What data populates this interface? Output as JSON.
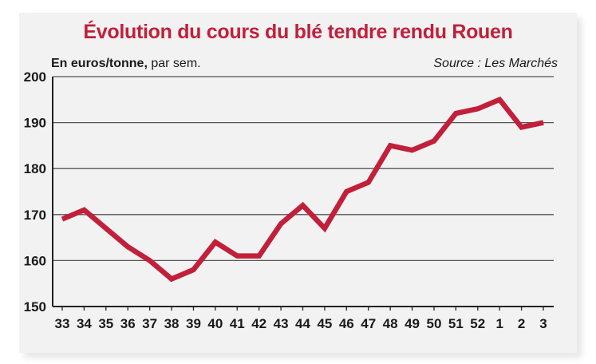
{
  "chart_data": {
    "type": "line",
    "title": "Évolution du cours du blé tendre rendu Rouen",
    "ylabel": "En euros/tonne,",
    "ylabel_suffix": "par sem.",
    "source": "Source : Les Marchés",
    "categories": [
      "33",
      "34",
      "35",
      "36",
      "37",
      "38",
      "39",
      "40",
      "41",
      "42",
      "43",
      "44",
      "45",
      "46",
      "47",
      "48",
      "49",
      "50",
      "51",
      "52",
      "1",
      "2",
      "3"
    ],
    "series": [
      {
        "values": [
          169,
          171,
          167,
          163,
          160,
          156,
          158,
          164,
          161,
          161,
          168,
          172,
          167,
          175,
          177,
          185,
          184,
          186,
          192,
          193,
          195,
          189,
          190
        ]
      }
    ],
    "ylim": [
      150,
      200
    ],
    "yticks": [
      150,
      160,
      170,
      180,
      190,
      200
    ],
    "grid": true,
    "line_color": "#c21f3a"
  }
}
